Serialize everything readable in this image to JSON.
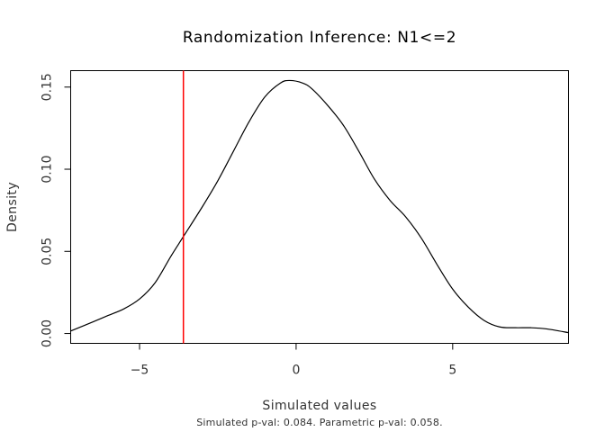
{
  "chart_data": {
    "type": "line",
    "title": "Randomization Inference: N1<=2",
    "xlabel": "Simulated values",
    "ylabel": "Density",
    "subtitle": "Simulated p-val: 0.084. Parametric p-val: 0.058.",
    "xlim": [
      -7.2,
      8.7
    ],
    "ylim": [
      -0.006,
      0.16
    ],
    "x_ticks": [
      -5,
      0,
      5
    ],
    "x_tick_labels": [
      "−5",
      "0",
      "5"
    ],
    "y_ticks": [
      0.0,
      0.05,
      0.1,
      0.15
    ],
    "y_tick_labels": [
      "0.00",
      "0.05",
      "0.10",
      "0.15"
    ],
    "grid": false,
    "series": [
      {
        "color": "#000000",
        "x": [
          -7.2,
          -6.5,
          -6.0,
          -5.5,
          -5.0,
          -4.5,
          -4.0,
          -3.6,
          -3.0,
          -2.5,
          -2.0,
          -1.5,
          -1.0,
          -0.5,
          -0.2,
          0.2,
          0.5,
          1.0,
          1.5,
          2.0,
          2.5,
          3.0,
          3.5,
          4.0,
          4.5,
          5.0,
          5.5,
          6.0,
          6.5,
          7.0,
          7.5,
          8.0,
          8.7
        ],
        "y": [
          0.0015,
          0.007,
          0.011,
          0.015,
          0.021,
          0.031,
          0.047,
          0.059,
          0.077,
          0.093,
          0.111,
          0.129,
          0.144,
          0.1525,
          0.154,
          0.1525,
          0.149,
          0.139,
          0.127,
          0.111,
          0.094,
          0.081,
          0.071,
          0.058,
          0.042,
          0.027,
          0.016,
          0.008,
          0.004,
          0.0035,
          0.0035,
          0.0028,
          0.0005
        ]
      }
    ],
    "vline": {
      "x": -3.6,
      "color": "#ff0000"
    }
  }
}
